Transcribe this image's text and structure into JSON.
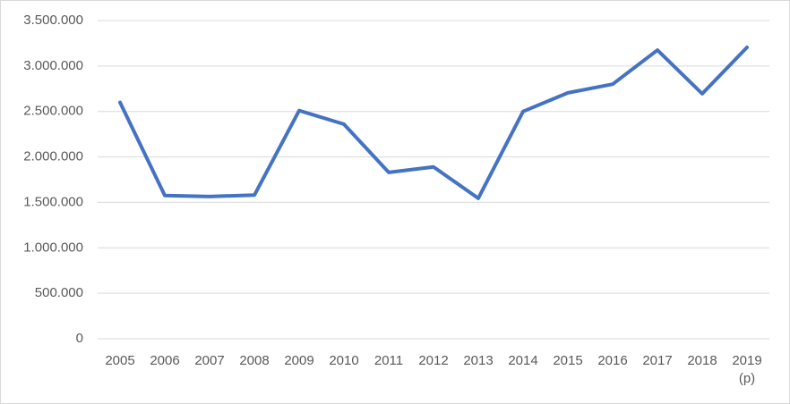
{
  "chart_data": {
    "type": "line",
    "categories": [
      "2005",
      "2006",
      "2007",
      "2008",
      "2009",
      "2010",
      "2011",
      "2012",
      "2013",
      "2014",
      "2015",
      "2016",
      "2017",
      "2018",
      "2019\n(p)"
    ],
    "series": [
      {
        "color": "#4472c4",
        "values": [
          2600000,
          1575000,
          1565000,
          1580000,
          2510000,
          2360000,
          1830000,
          1890000,
          1545000,
          2500000,
          2705000,
          2800000,
          3175000,
          2695000,
          3205000
        ]
      }
    ],
    "ylim": [
      0,
      3500000
    ],
    "yticks": [
      0,
      {
        "value": 500000,
        "label": "500.000"
      },
      {
        "value": 1000000,
        "label": "1.000.000"
      },
      {
        "value": 1500000,
        "label": "1.500.000"
      },
      {
        "value": 2000000,
        "label": "2.000.000"
      },
      {
        "value": 2500000,
        "label": "2.500.000"
      },
      {
        "value": 3000000,
        "label": "3.000.000"
      },
      {
        "value": 3500000,
        "label": "3.500.000"
      }
    ],
    "grid": true
  }
}
